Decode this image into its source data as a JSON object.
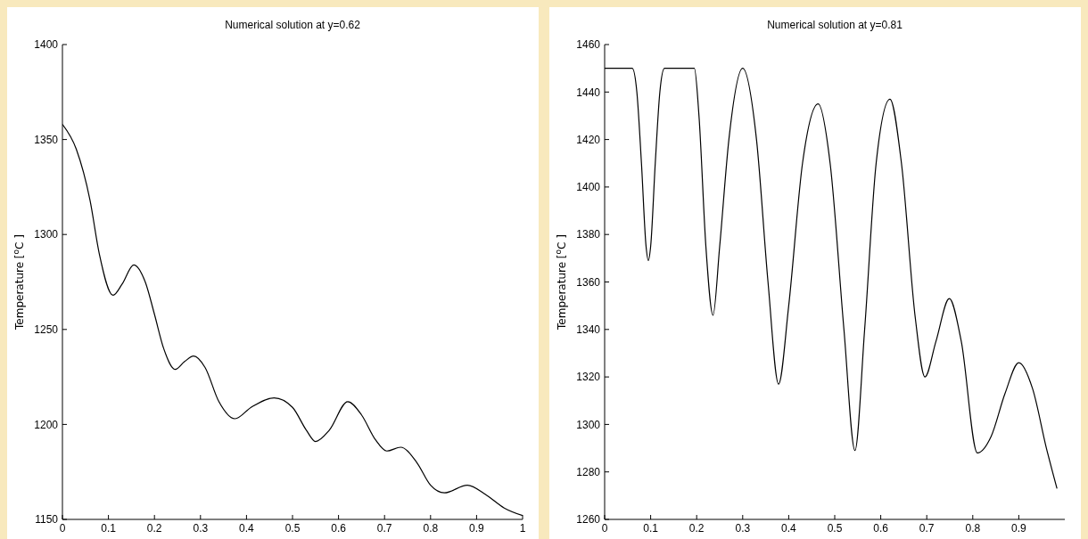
{
  "chart_data": [
    {
      "type": "line",
      "title": "Numerical solution at y=0.62",
      "ylabel": "Temperature [$^{o}$C ]",
      "xlim": [
        0,
        1
      ],
      "ylim": [
        1150,
        1400
      ],
      "xticks": [
        0,
        0.1,
        0.2,
        0.3,
        0.4,
        0.5,
        0.6,
        0.7,
        0.8,
        0.9,
        1
      ],
      "yticks": [
        1150,
        1200,
        1250,
        1300,
        1350,
        1400
      ],
      "grid": false,
      "x": [
        0,
        0.03,
        0.06,
        0.08,
        0.11,
        0.13,
        0.155,
        0.18,
        0.2,
        0.22,
        0.245,
        0.265,
        0.285,
        0.31,
        0.34,
        0.375,
        0.41,
        0.46,
        0.5,
        0.53,
        0.55,
        0.58,
        0.62,
        0.65,
        0.68,
        0.705,
        0.735,
        0.77,
        0.8,
        0.83,
        0.88,
        0.92,
        0.96,
        1
      ],
      "series": [
        {
          "color": "#000000",
          "values": [
            1358,
            1345,
            1318,
            1290,
            1268,
            1274,
            1284,
            1275,
            1258,
            1240,
            1229,
            1233,
            1236,
            1230,
            1212,
            1203,
            1209,
            1214,
            1209,
            1197,
            1191,
            1197,
            1212,
            1205,
            1192,
            1186,
            1188,
            1180,
            1168,
            1164,
            1168,
            1163,
            1156,
            1152
          ]
        }
      ]
    },
    {
      "type": "line",
      "title": "Numerical solution at y=0.81",
      "ylabel": "Temperature [$^{o}$C ]",
      "xlim": [
        0,
        1
      ],
      "ylim": [
        1260,
        1460
      ],
      "xticks": [
        0,
        0.1,
        0.2,
        0.3,
        0.4,
        0.5,
        0.6,
        0.7,
        0.8,
        0.9
      ],
      "yticks": [
        1260,
        1280,
        1300,
        1320,
        1340,
        1360,
        1380,
        1400,
        1420,
        1440,
        1460
      ],
      "grid": false,
      "x": [
        0,
        0.06,
        0.07,
        0.08,
        0.09,
        0.095,
        0.1,
        0.11,
        0.12,
        0.13,
        0.195,
        0.205,
        0.22,
        0.2355,
        0.25,
        0.27,
        0.3,
        0.33,
        0.355,
        0.378,
        0.4,
        0.43,
        0.464,
        0.49,
        0.52,
        0.544,
        0.565,
        0.59,
        0.62,
        0.645,
        0.675,
        0.696,
        0.72,
        0.749,
        0.775,
        0.81,
        0.84,
        0.87,
        0.9,
        0.93,
        0.96,
        0.983
      ],
      "series": [
        {
          "color": "#000000",
          "values": [
            1450,
            1450,
            1440,
            1410,
            1375,
            1369,
            1375,
            1410,
            1440,
            1450,
            1450,
            1430,
            1375,
            1346,
            1375,
            1420,
            1450,
            1420,
            1360,
            1317,
            1350,
            1410,
            1435,
            1410,
            1340,
            1289,
            1340,
            1410,
            1437,
            1410,
            1345,
            1320,
            1335,
            1353,
            1335,
            1288,
            1295,
            1313,
            1326,
            1315,
            1290,
            1273
          ]
        }
      ]
    }
  ]
}
